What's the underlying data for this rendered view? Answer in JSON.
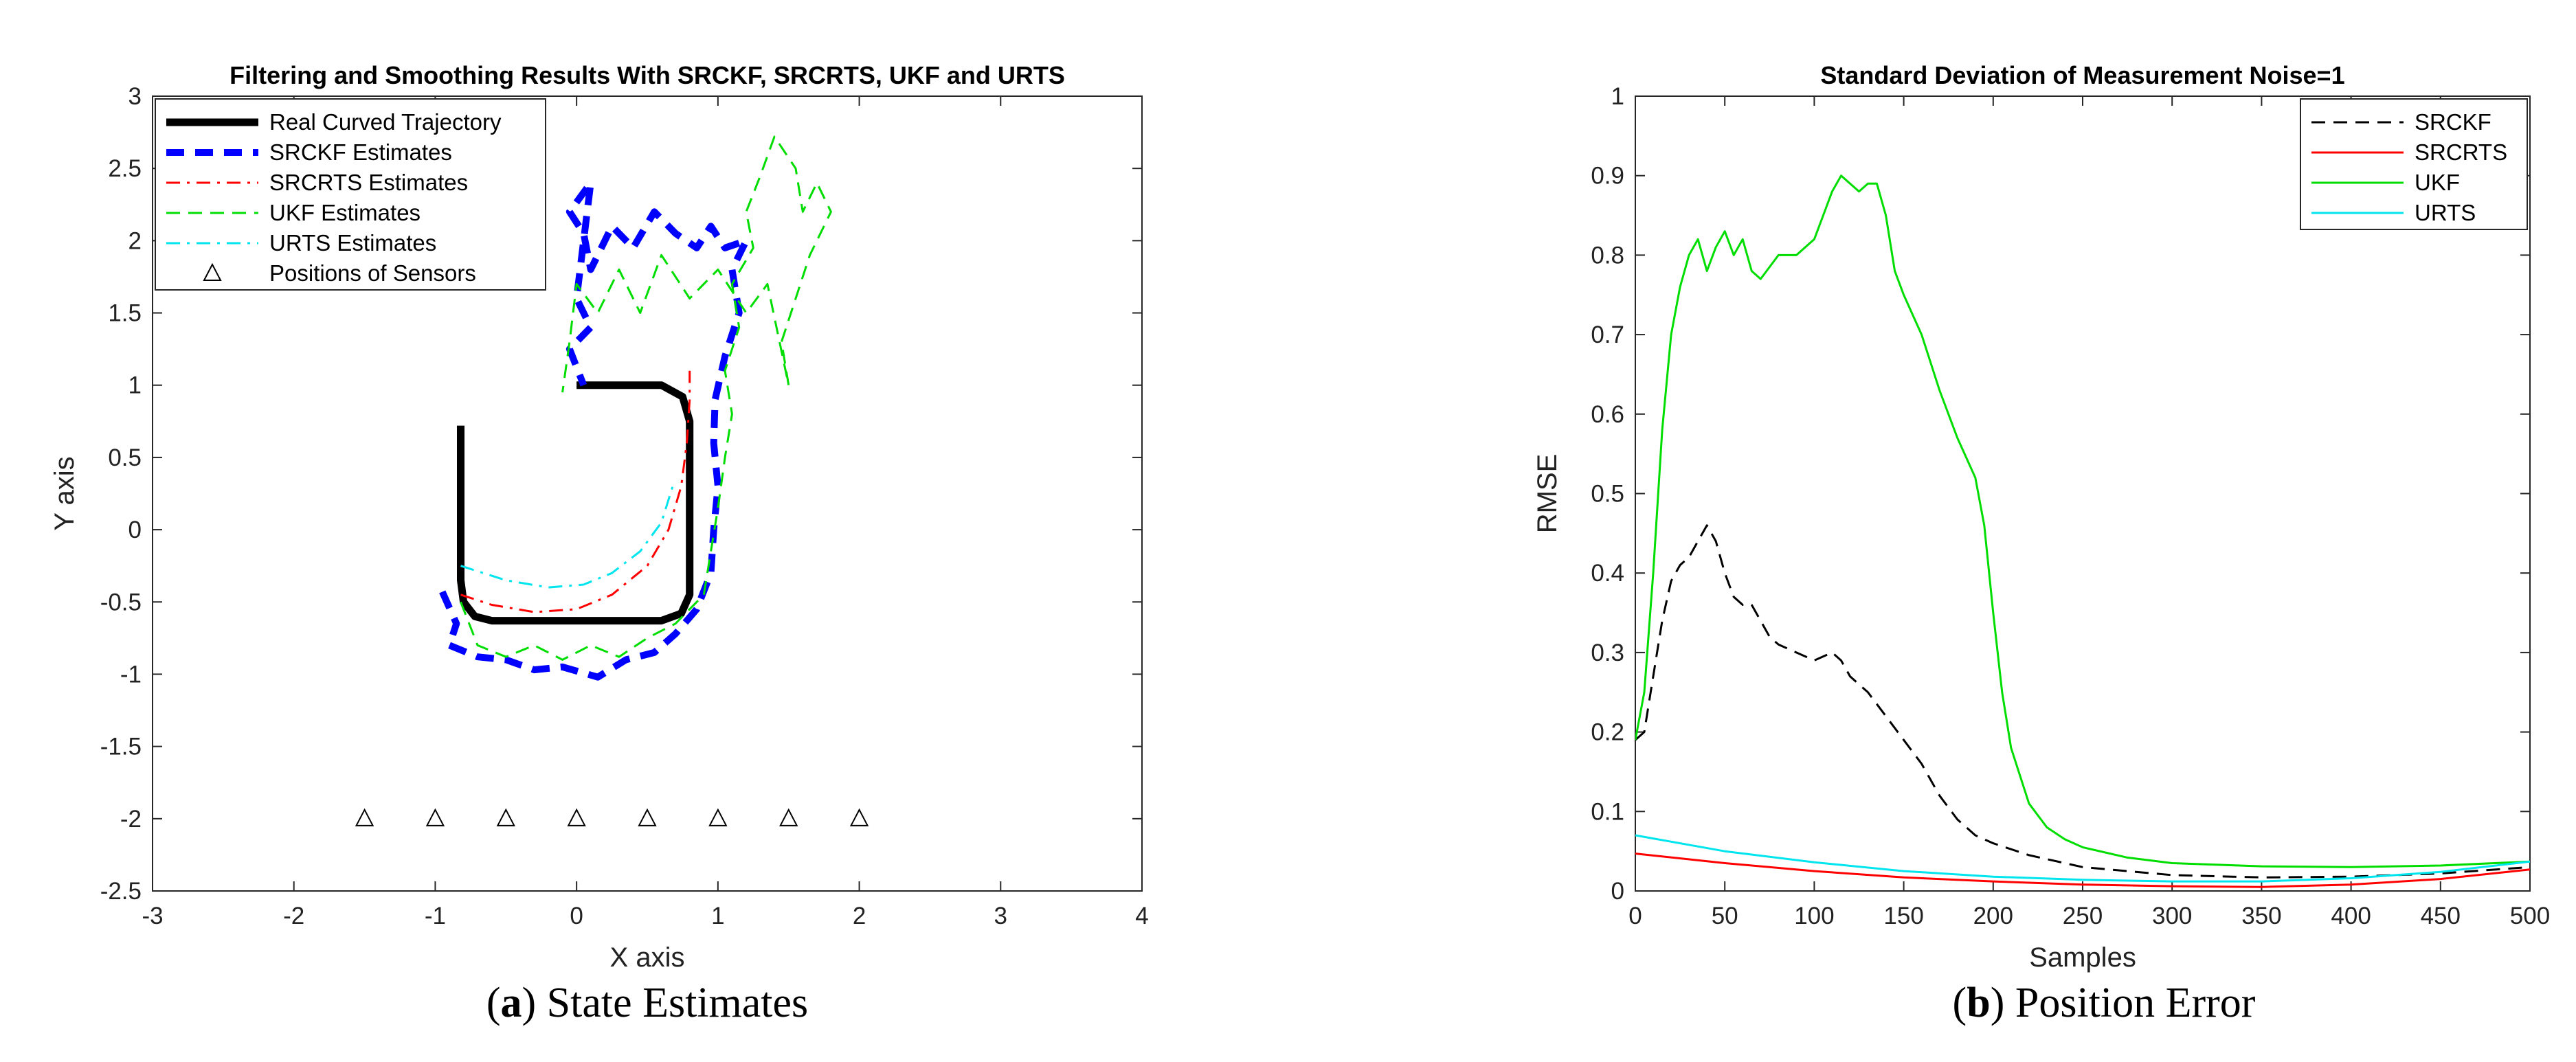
{
  "chart_data": [
    {
      "type": "line",
      "title": "Filtering and Smoothing Results With SRCKF, SRCRTS, UKF and URTS",
      "xlabel": "X axis",
      "ylabel": "Y axis",
      "xlim": [
        -3,
        4
      ],
      "ylim": [
        -2.5,
        3
      ],
      "xticks": [
        -3,
        -2,
        -1,
        0,
        1,
        2,
        3,
        4
      ],
      "yticks": [
        -2.5,
        -2,
        -1.5,
        -1,
        -0.5,
        0,
        0.5,
        1,
        1.5,
        2,
        2.5,
        3
      ],
      "grid": false,
      "legend_position": "top-left",
      "caption": {
        "label": "a",
        "text": "State Estimates"
      },
      "series": [
        {
          "name": "Real Curved Trajectory",
          "color": "#000000",
          "style": "solid-thick",
          "points": [
            [
              -0.82,
              0.72
            ],
            [
              -0.82,
              -0.35
            ],
            [
              -0.8,
              -0.5
            ],
            [
              -0.72,
              -0.6
            ],
            [
              -0.6,
              -0.63
            ],
            [
              0.6,
              -0.63
            ],
            [
              0.74,
              -0.58
            ],
            [
              0.8,
              -0.45
            ],
            [
              0.8,
              0.75
            ],
            [
              0.75,
              0.92
            ],
            [
              0.6,
              1.0
            ],
            [
              0.0,
              1.0
            ]
          ]
        },
        {
          "name": "SRCKF Estimates",
          "color": "#0000ff",
          "style": "dashed-thick",
          "points": [
            [
              -0.95,
              -0.43
            ],
            [
              -0.85,
              -0.65
            ],
            [
              -0.9,
              -0.8
            ],
            [
              -0.7,
              -0.88
            ],
            [
              -0.5,
              -0.9
            ],
            [
              -0.3,
              -0.97
            ],
            [
              -0.1,
              -0.95
            ],
            [
              0.15,
              -1.02
            ],
            [
              0.35,
              -0.9
            ],
            [
              0.55,
              -0.85
            ],
            [
              0.7,
              -0.72
            ],
            [
              0.85,
              -0.55
            ],
            [
              0.95,
              -0.3
            ],
            [
              0.97,
              0.0
            ],
            [
              1.0,
              0.3
            ],
            [
              0.97,
              0.6
            ],
            [
              0.98,
              0.9
            ],
            [
              1.05,
              1.2
            ],
            [
              1.15,
              1.5
            ],
            [
              1.1,
              1.8
            ],
            [
              1.2,
              2.0
            ],
            [
              1.05,
              1.95
            ],
            [
              0.95,
              2.1
            ],
            [
              0.85,
              1.95
            ],
            [
              0.7,
              2.05
            ],
            [
              0.55,
              2.2
            ],
            [
              0.4,
              1.95
            ],
            [
              0.25,
              2.1
            ],
            [
              0.1,
              1.8
            ],
            [
              0.05,
              2.05
            ],
            [
              -0.05,
              2.2
            ],
            [
              0.1,
              2.4
            ],
            [
              0.0,
              1.6
            ],
            [
              0.1,
              1.4
            ],
            [
              -0.05,
              1.25
            ],
            [
              0.05,
              1.0
            ]
          ]
        },
        {
          "name": "SRCRTS Estimates",
          "color": "#ff0000",
          "style": "dashdot",
          "points": [
            [
              -0.82,
              -0.45
            ],
            [
              -0.6,
              -0.52
            ],
            [
              -0.3,
              -0.57
            ],
            [
              0.0,
              -0.55
            ],
            [
              0.25,
              -0.45
            ],
            [
              0.5,
              -0.25
            ],
            [
              0.65,
              0.0
            ],
            [
              0.74,
              0.3
            ],
            [
              0.78,
              0.6
            ],
            [
              0.8,
              0.9
            ],
            [
              0.8,
              1.1
            ]
          ]
        },
        {
          "name": "UKF Estimates",
          "color": "#00dd00",
          "style": "dashed",
          "points": [
            [
              -0.82,
              -0.5
            ],
            [
              -0.7,
              -0.8
            ],
            [
              -0.5,
              -0.88
            ],
            [
              -0.3,
              -0.8
            ],
            [
              -0.1,
              -0.9
            ],
            [
              0.1,
              -0.8
            ],
            [
              0.3,
              -0.88
            ],
            [
              0.5,
              -0.75
            ],
            [
              0.7,
              -0.65
            ],
            [
              0.9,
              -0.45
            ],
            [
              0.95,
              -0.15
            ],
            [
              1.0,
              0.15
            ],
            [
              1.05,
              0.5
            ],
            [
              1.1,
              0.8
            ],
            [
              1.05,
              1.1
            ],
            [
              1.15,
              1.4
            ],
            [
              1.1,
              1.7
            ],
            [
              1.25,
              1.95
            ],
            [
              1.2,
              2.2
            ],
            [
              1.3,
              2.45
            ],
            [
              1.4,
              2.72
            ],
            [
              1.55,
              2.5
            ],
            [
              1.6,
              2.2
            ],
            [
              1.7,
              2.4
            ],
            [
              1.8,
              2.2
            ],
            [
              1.65,
              1.9
            ],
            [
              1.55,
              1.6
            ],
            [
              1.45,
              1.3
            ],
            [
              1.5,
              1.0
            ],
            [
              1.35,
              1.7
            ],
            [
              1.2,
              1.5
            ],
            [
              1.0,
              1.8
            ],
            [
              0.8,
              1.6
            ],
            [
              0.6,
              1.9
            ],
            [
              0.45,
              1.5
            ],
            [
              0.3,
              1.8
            ],
            [
              0.15,
              1.5
            ],
            [
              0.0,
              1.7
            ],
            [
              -0.05,
              1.3
            ],
            [
              -0.1,
              0.95
            ]
          ]
        },
        {
          "name": "URTS Estimates",
          "color": "#00e5ee",
          "style": "dashdot",
          "points": [
            [
              -0.82,
              -0.25
            ],
            [
              -0.5,
              -0.35
            ],
            [
              -0.2,
              -0.4
            ],
            [
              0.05,
              -0.38
            ],
            [
              0.25,
              -0.3
            ],
            [
              0.45,
              -0.15
            ],
            [
              0.6,
              0.05
            ],
            [
              0.68,
              0.3
            ]
          ]
        },
        {
          "name": "Positions of Sensors",
          "color": "#000000",
          "style": "markers-triangle",
          "points": [
            [
              -1.5,
              -2
            ],
            [
              -1,
              -2
            ],
            [
              -0.5,
              -2
            ],
            [
              0,
              -2
            ],
            [
              0.5,
              -2
            ],
            [
              1,
              -2
            ],
            [
              1.5,
              -2
            ],
            [
              2,
              -2
            ]
          ]
        }
      ]
    },
    {
      "type": "line",
      "title": "Standard Deviation of Measurement Noise=1",
      "xlabel": "Samples",
      "ylabel": "RMSE",
      "xlim": [
        0,
        500
      ],
      "ylim": [
        0,
        1
      ],
      "xticks": [
        0,
        50,
        100,
        150,
        200,
        250,
        300,
        350,
        400,
        450,
        500
      ],
      "yticks": [
        0,
        0.1,
        0.2,
        0.3,
        0.4,
        0.5,
        0.6,
        0.7,
        0.8,
        0.9,
        1
      ],
      "grid": false,
      "legend_position": "top-right",
      "caption": {
        "label": "b",
        "text": "Position Error"
      },
      "series": [
        {
          "name": "SRCKF",
          "color": "#000000",
          "style": "dashed",
          "points": [
            [
              0,
              0.19
            ],
            [
              5,
              0.2
            ],
            [
              10,
              0.27
            ],
            [
              15,
              0.34
            ],
            [
              20,
              0.39
            ],
            [
              25,
              0.41
            ],
            [
              30,
              0.42
            ],
            [
              35,
              0.44
            ],
            [
              40,
              0.46
            ],
            [
              45,
              0.44
            ],
            [
              50,
              0.4
            ],
            [
              55,
              0.37
            ],
            [
              60,
              0.36
            ],
            [
              65,
              0.36
            ],
            [
              70,
              0.34
            ],
            [
              75,
              0.32
            ],
            [
              80,
              0.31
            ],
            [
              90,
              0.3
            ],
            [
              100,
              0.29
            ],
            [
              110,
              0.3
            ],
            [
              115,
              0.29
            ],
            [
              120,
              0.27
            ],
            [
              130,
              0.25
            ],
            [
              140,
              0.22
            ],
            [
              150,
              0.19
            ],
            [
              160,
              0.16
            ],
            [
              170,
              0.12
            ],
            [
              180,
              0.09
            ],
            [
              190,
              0.07
            ],
            [
              200,
              0.06
            ],
            [
              220,
              0.045
            ],
            [
              250,
              0.03
            ],
            [
              300,
              0.02
            ],
            [
              350,
              0.017
            ],
            [
              400,
              0.018
            ],
            [
              450,
              0.022
            ],
            [
              500,
              0.03
            ]
          ]
        },
        {
          "name": "SRCRTS",
          "color": "#ff0000",
          "style": "solid",
          "points": [
            [
              0,
              0.047
            ],
            [
              50,
              0.035
            ],
            [
              100,
              0.025
            ],
            [
              150,
              0.017
            ],
            [
              200,
              0.012
            ],
            [
              250,
              0.008
            ],
            [
              300,
              0.006
            ],
            [
              350,
              0.005
            ],
            [
              400,
              0.008
            ],
            [
              450,
              0.015
            ],
            [
              500,
              0.027
            ]
          ]
        },
        {
          "name": "UKF",
          "color": "#00dd00",
          "style": "solid",
          "points": [
            [
              0,
              0.19
            ],
            [
              5,
              0.25
            ],
            [
              10,
              0.4
            ],
            [
              15,
              0.58
            ],
            [
              20,
              0.7
            ],
            [
              25,
              0.76
            ],
            [
              30,
              0.8
            ],
            [
              35,
              0.82
            ],
            [
              40,
              0.78
            ],
            [
              45,
              0.81
            ],
            [
              50,
              0.83
            ],
            [
              55,
              0.8
            ],
            [
              60,
              0.82
            ],
            [
              65,
              0.78
            ],
            [
              70,
              0.77
            ],
            [
              80,
              0.8
            ],
            [
              90,
              0.8
            ],
            [
              100,
              0.82
            ],
            [
              105,
              0.85
            ],
            [
              110,
              0.88
            ],
            [
              115,
              0.9
            ],
            [
              120,
              0.89
            ],
            [
              125,
              0.88
            ],
            [
              130,
              0.89
            ],
            [
              135,
              0.89
            ],
            [
              140,
              0.85
            ],
            [
              145,
              0.78
            ],
            [
              150,
              0.75
            ],
            [
              160,
              0.7
            ],
            [
              170,
              0.63
            ],
            [
              180,
              0.57
            ],
            [
              190,
              0.52
            ],
            [
              195,
              0.46
            ],
            [
              200,
              0.35
            ],
            [
              205,
              0.25
            ],
            [
              210,
              0.18
            ],
            [
              220,
              0.11
            ],
            [
              230,
              0.08
            ],
            [
              240,
              0.065
            ],
            [
              250,
              0.055
            ],
            [
              275,
              0.042
            ],
            [
              300,
              0.035
            ],
            [
              350,
              0.031
            ],
            [
              400,
              0.03
            ],
            [
              450,
              0.032
            ],
            [
              500,
              0.037
            ]
          ]
        },
        {
          "name": "URTS",
          "color": "#00e5ee",
          "style": "solid",
          "points": [
            [
              0,
              0.07
            ],
            [
              50,
              0.05
            ],
            [
              100,
              0.036
            ],
            [
              150,
              0.025
            ],
            [
              200,
              0.018
            ],
            [
              250,
              0.014
            ],
            [
              300,
              0.012
            ],
            [
              350,
              0.012
            ],
            [
              400,
              0.016
            ],
            [
              450,
              0.024
            ],
            [
              500,
              0.037
            ]
          ]
        }
      ]
    }
  ]
}
